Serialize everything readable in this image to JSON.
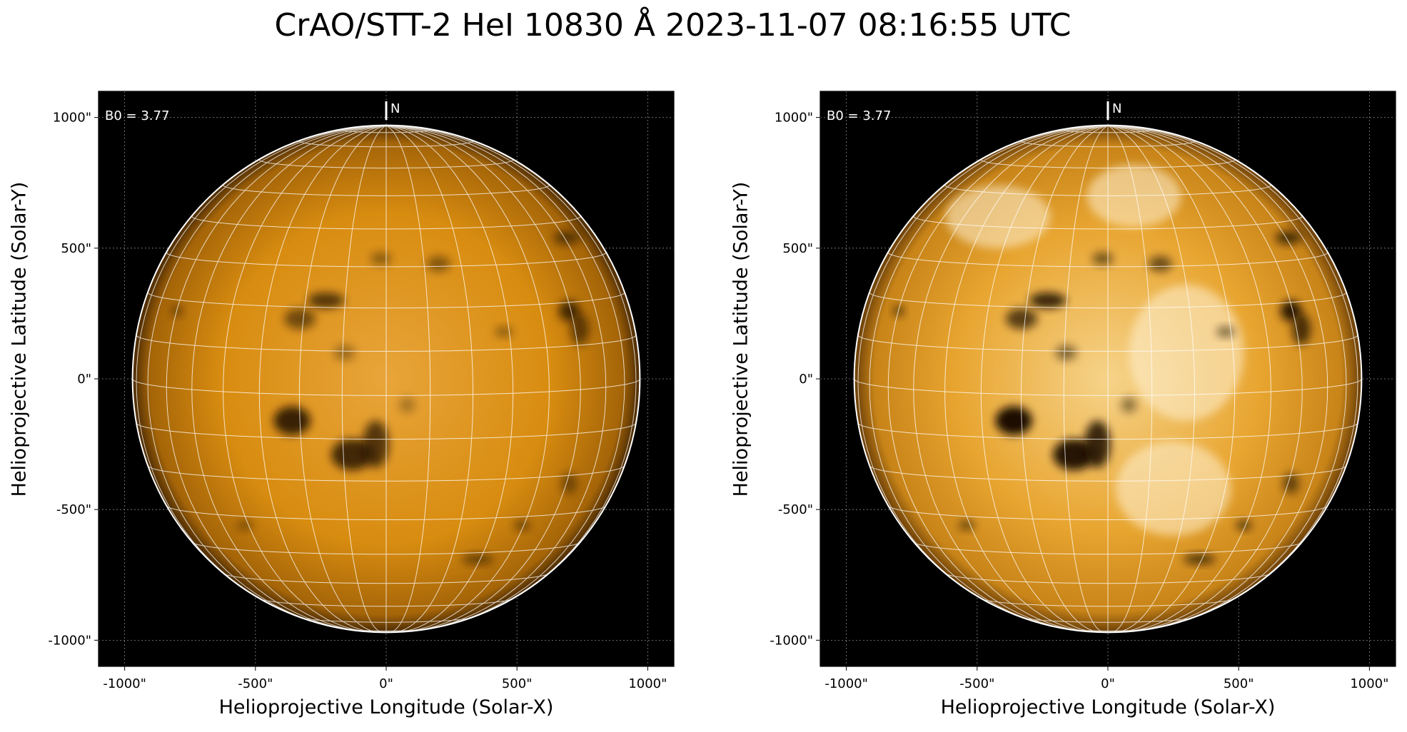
{
  "title": "CrAO/STT-2 HeI 10830 Å 2023-11-07 08:16:55 UTC",
  "panels": [
    {
      "id": "left",
      "variant": "normal",
      "b0_label": "B0 = 3.77",
      "north_label": "N",
      "x_axis_label": "Helioprojective Longitude (Solar-X)",
      "y_axis_label": "Helioprojective Latitude (Solar-Y)"
    },
    {
      "id": "right",
      "variant": "enhanced",
      "b0_label": "B0 = 3.77",
      "north_label": "N",
      "x_axis_label": "Helioprojective Longitude (Solar-X)",
      "y_axis_label": "Helioprojective Latitude (Solar-Y)"
    }
  ],
  "axes": {
    "x_ticks": [
      "-1000\"",
      "-500\"",
      "0\"",
      "500\"",
      "1000\""
    ],
    "y_ticks": [
      "1000\"",
      "500\"",
      "0\"",
      "-500\"",
      "-1000\""
    ],
    "tick_values": [
      -1000,
      -500,
      0,
      500,
      1000
    ],
    "range": [
      -1100,
      1100
    ],
    "grid": true
  },
  "solar_disk_radius_arcsec": 970,
  "colors": {
    "background": "#000000",
    "disk_base": "#d88c10",
    "disk_enhanced": "#e8a530",
    "grid_lines": "#ffffff",
    "limb": "#ffffff"
  }
}
